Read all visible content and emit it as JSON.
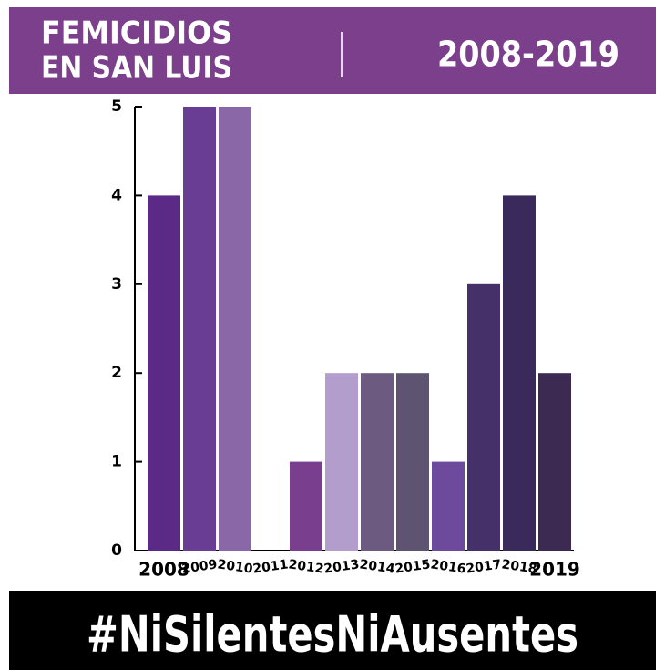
{
  "chart_data": {
    "type": "bar",
    "title": [
      "FEMICIDIOS",
      "EN SAN LUIS"
    ],
    "subtitle": "2008-2019",
    "footer": "#NiSilentesNiAusentes",
    "categories": [
      "2008",
      "2009",
      "2010",
      "2011",
      "2012",
      "2013",
      "2014",
      "2015",
      "2016",
      "2017",
      "2018",
      "2019"
    ],
    "values": [
      4,
      5,
      5,
      0,
      1,
      2,
      2,
      2,
      1,
      3,
      4,
      2
    ],
    "colors": [
      "#5b2a86",
      "#6a3d95",
      "#8a68a8",
      "#6a3d95",
      "#7a3e8e",
      "#b39dcc",
      "#6c5a80",
      "#5e5370",
      "#6d4a9b",
      "#45306a",
      "#3a2a5c",
      "#3c2a52"
    ],
    "ylim": [
      0,
      5
    ],
    "yticks": [
      0,
      1,
      2,
      3,
      4,
      5
    ],
    "grid": false
  }
}
